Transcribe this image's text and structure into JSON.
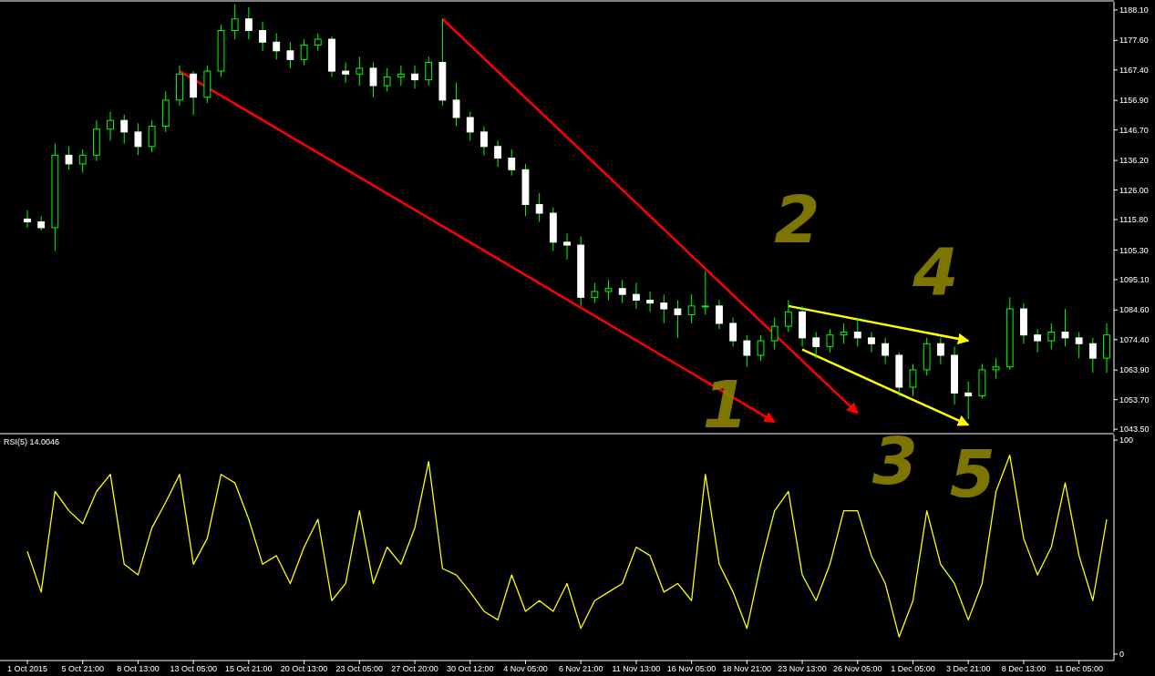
{
  "chart_data": [
    {
      "type": "candlestick",
      "tick_labels": "y",
      "categories": [
        null,
        null,
        null,
        null,
        null,
        null,
        null,
        null,
        null,
        null,
        null,
        null,
        null,
        null,
        null,
        null,
        null,
        null,
        null,
        null,
        null,
        null,
        null,
        null,
        null,
        null,
        null,
        null,
        null,
        null,
        null,
        null,
        null,
        null,
        null,
        null,
        null,
        null,
        null,
        null,
        null,
        null,
        null,
        null,
        null,
        null,
        null,
        null,
        null,
        null,
        null,
        null,
        null,
        null,
        null,
        null,
        null,
        null,
        null,
        null,
        null,
        null,
        null,
        null,
        null,
        null,
        null,
        null,
        null,
        null,
        null,
        null,
        null,
        null,
        null,
        null,
        null,
        null,
        null
      ],
      "ohlc": [
        [
          1116,
          1119,
          1113,
          1115
        ],
        [
          1115,
          1117,
          1112,
          1113
        ],
        [
          1113,
          1142,
          1105,
          1138
        ],
        [
          1138,
          1141,
          1133,
          1135
        ],
        [
          1135,
          1140,
          1132,
          1138
        ],
        [
          1138,
          1150,
          1136,
          1147
        ],
        [
          1147,
          1153,
          1143,
          1150
        ],
        [
          1150,
          1152,
          1142,
          1146
        ],
        [
          1146,
          1149,
          1138,
          1141
        ],
        [
          1141,
          1150,
          1139,
          1148
        ],
        [
          1148,
          1160,
          1146,
          1157
        ],
        [
          1157,
          1169,
          1155,
          1166
        ],
        [
          1166,
          1167,
          1152,
          1158
        ],
        [
          1158,
          1169,
          1156,
          1167
        ],
        [
          1167,
          1183,
          1165,
          1181
        ],
        [
          1181,
          1190,
          1178,
          1185
        ],
        [
          1185,
          1189,
          1178,
          1181
        ],
        [
          1181,
          1184,
          1174,
          1177
        ],
        [
          1177,
          1180,
          1171,
          1174
        ],
        [
          1174,
          1177,
          1168,
          1171
        ],
        [
          1171,
          1178,
          1169,
          1176
        ],
        [
          1176,
          1180,
          1174,
          1178
        ],
        [
          1178,
          1179,
          1165,
          1167
        ],
        [
          1167,
          1170,
          1163,
          1166
        ],
        [
          1166,
          1172,
          1162,
          1168
        ],
        [
          1168,
          1170,
          1158,
          1162
        ],
        [
          1162,
          1168,
          1160,
          1165
        ],
        [
          1165,
          1169,
          1162,
          1166
        ],
        [
          1166,
          1169,
          1161,
          1164
        ],
        [
          1164,
          1172,
          1162,
          1170
        ],
        [
          1170,
          1185,
          1155,
          1157
        ],
        [
          1157,
          1163,
          1148,
          1151
        ],
        [
          1151,
          1153,
          1143,
          1146
        ],
        [
          1146,
          1148,
          1138,
          1141
        ],
        [
          1141,
          1143,
          1134,
          1137
        ],
        [
          1137,
          1140,
          1131,
          1133
        ],
        [
          1133,
          1135,
          1117,
          1121
        ],
        [
          1121,
          1125,
          1115,
          1118
        ],
        [
          1118,
          1120,
          1105,
          1108
        ],
        [
          1108,
          1111,
          1102,
          1107
        ],
        [
          1107,
          1110,
          1086,
          1089
        ],
        [
          1089,
          1094,
          1087,
          1091
        ],
        [
          1091,
          1095,
          1088,
          1092
        ],
        [
          1092,
          1095,
          1087,
          1090
        ],
        [
          1090,
          1094,
          1085,
          1088
        ],
        [
          1088,
          1091,
          1084,
          1087
        ],
        [
          1087,
          1090,
          1080,
          1085
        ],
        [
          1085,
          1088,
          1075,
          1083
        ],
        [
          1083,
          1090,
          1080,
          1086
        ],
        [
          1086,
          1098,
          1083,
          1086
        ],
        [
          1086,
          1088,
          1078,
          1080
        ],
        [
          1080,
          1082,
          1072,
          1074
        ],
        [
          1074,
          1076,
          1065,
          1069
        ],
        [
          1069,
          1076,
          1067,
          1074
        ],
        [
          1074,
          1082,
          1071,
          1079
        ],
        [
          1079,
          1088,
          1077,
          1084
        ],
        [
          1084,
          1086,
          1072,
          1075
        ],
        [
          1075,
          1077,
          1068,
          1072
        ],
        [
          1072,
          1078,
          1070,
          1076
        ],
        [
          1076,
          1080,
          1073,
          1077
        ],
        [
          1077,
          1082,
          1072,
          1075
        ],
        [
          1075,
          1077,
          1070,
          1073
        ],
        [
          1073,
          1075,
          1066,
          1069
        ],
        [
          1069,
          1070,
          1055,
          1058
        ],
        [
          1058,
          1066,
          1055,
          1064
        ],
        [
          1064,
          1075,
          1062,
          1073
        ],
        [
          1073,
          1075,
          1066,
          1069
        ],
        [
          1069,
          1072,
          1052,
          1056
        ],
        [
          1056,
          1060,
          1047,
          1055
        ],
        [
          1055,
          1066,
          1054,
          1064
        ],
        [
          1064,
          1068,
          1061,
          1065
        ],
        [
          1065,
          1089,
          1064,
          1085
        ],
        [
          1085,
          1087,
          1073,
          1076
        ],
        [
          1076,
          1078,
          1070,
          1074
        ],
        [
          1074,
          1080,
          1071,
          1077
        ],
        [
          1077,
          1085,
          1072,
          1075
        ],
        [
          1075,
          1077,
          1068,
          1073
        ],
        [
          1073,
          1075,
          1063,
          1068
        ],
        [
          1068,
          1080,
          1063,
          1076
        ]
      ],
      "series": [
        {
          "type": "line",
          "color": "#ff0000",
          "values": [
            null,
            null,
            null,
            null,
            null,
            null,
            null,
            null,
            null,
            null,
            null,
            1167,
            null,
            null,
            null,
            null,
            null,
            null,
            null,
            null,
            null,
            null,
            null,
            null,
            null,
            null,
            null,
            null,
            null,
            null,
            null,
            null,
            null,
            null,
            null,
            null,
            null,
            null,
            null,
            null,
            null,
            null,
            null,
            null,
            null,
            null,
            null,
            null,
            null,
            null,
            null,
            null,
            null,
            null,
            1046,
            null,
            null,
            null,
            null,
            null,
            null,
            null,
            null,
            null,
            null,
            null,
            null,
            null,
            null,
            null,
            null,
            null,
            null,
            null,
            null,
            null,
            null,
            null,
            null
          ]
        },
        {
          "type": "line",
          "color": "#ff0000",
          "values": [
            null,
            null,
            null,
            null,
            null,
            null,
            null,
            null,
            null,
            null,
            null,
            null,
            null,
            null,
            null,
            null,
            null,
            null,
            null,
            null,
            null,
            null,
            null,
            null,
            null,
            null,
            null,
            null,
            null,
            null,
            1185,
            null,
            null,
            null,
            null,
            null,
            null,
            null,
            null,
            null,
            null,
            null,
            null,
            null,
            null,
            null,
            null,
            null,
            null,
            null,
            null,
            null,
            null,
            null,
            null,
            null,
            null,
            null,
            null,
            null,
            1049,
            null,
            null,
            null,
            null,
            null,
            null,
            null,
            null,
            null,
            null,
            null,
            null,
            null,
            null,
            null,
            null,
            null,
            null
          ]
        },
        {
          "type": "line",
          "color": "#ffff00",
          "values": [
            null,
            null,
            null,
            null,
            null,
            null,
            null,
            null,
            null,
            null,
            null,
            null,
            null,
            null,
            null,
            null,
            null,
            null,
            null,
            null,
            null,
            null,
            null,
            null,
            null,
            null,
            null,
            null,
            null,
            null,
            null,
            null,
            null,
            null,
            null,
            null,
            null,
            null,
            null,
            null,
            null,
            null,
            null,
            null,
            null,
            null,
            null,
            null,
            null,
            null,
            null,
            null,
            null,
            null,
            null,
            1086,
            null,
            null,
            null,
            null,
            null,
            null,
            null,
            null,
            null,
            null,
            null,
            null,
            1074,
            null,
            null,
            null,
            null,
            null,
            null,
            null,
            null,
            null,
            null
          ]
        },
        {
          "type": "line",
          "color": "#ffff00",
          "values": [
            null,
            null,
            null,
            null,
            null,
            null,
            null,
            null,
            null,
            null,
            null,
            null,
            null,
            null,
            null,
            null,
            null,
            null,
            null,
            null,
            null,
            null,
            null,
            null,
            null,
            null,
            null,
            null,
            null,
            null,
            null,
            null,
            null,
            null,
            null,
            null,
            null,
            null,
            null,
            null,
            null,
            null,
            null,
            null,
            null,
            null,
            null,
            null,
            null,
            null,
            null,
            null,
            null,
            null,
            null,
            null,
            1071,
            null,
            null,
            null,
            null,
            null,
            null,
            null,
            null,
            null,
            null,
            null,
            1045,
            null,
            null,
            null,
            null,
            null,
            null,
            null,
            null,
            null,
            null
          ]
        }
      ],
      "ylim": [
        1042.6,
        1190.9
      ],
      "yticks": [
        {
          "value": 1043.5,
          "label": "1043.50"
        },
        {
          "value": 1053.7,
          "label": "1053.70"
        },
        {
          "value": 1063.9,
          "label": "1063.90"
        },
        {
          "value": 1074.4,
          "label": "1074.40"
        },
        {
          "value": 1084.6,
          "label": "1084.60"
        },
        {
          "value": 1095.1,
          "label": "1095.10"
        },
        {
          "value": 1105.3,
          "label": "1105.30"
        },
        {
          "value": 1115.8,
          "label": "1115.80"
        },
        {
          "value": 1126,
          "label": "1126.00"
        },
        {
          "value": 1136.2,
          "label": "1136.20"
        },
        {
          "value": 1146.7,
          "label": "1146.70"
        },
        {
          "value": 1156.9,
          "label": "1156.90"
        },
        {
          "value": 1167.4,
          "label": "1167.40"
        },
        {
          "value": 1177.6,
          "label": "1177.60"
        },
        {
          "value": 1188.1,
          "label": "1188.10"
        }
      ],
      "annotations": [
        "1",
        "2",
        "3",
        "4",
        "5"
      ]
    },
    {
      "type": "line",
      "title": "RSI(5) 14.0046",
      "color": "#ffff00",
      "categories": [
        "1 Oct 2015",
        null,
        null,
        null,
        "5 Oct 21:00",
        null,
        null,
        null,
        "8 Oct 13:00",
        null,
        null,
        null,
        "13 Oct 05:00",
        null,
        null,
        null,
        "15 Oct 21:00",
        null,
        null,
        null,
        "20 Oct 13:00",
        null,
        null,
        null,
        "23 Oct 05:00",
        null,
        null,
        null,
        "27 Oct 20:00",
        null,
        null,
        null,
        "30 Oct 12:00",
        null,
        null,
        null,
        "4 Nov 05:00",
        null,
        null,
        null,
        "6 Nov 21:00",
        null,
        null,
        null,
        "11 Nov 13:00",
        null,
        null,
        null,
        "16 Nov 05:00",
        null,
        null,
        null,
        "18 Nov 21:00",
        null,
        null,
        null,
        "23 Nov 13:00",
        null,
        null,
        null,
        "26 Nov 05:00",
        null,
        null,
        null,
        "1 Dec 05:00",
        null,
        null,
        null,
        "3 Dec 21:00",
        null,
        null,
        null,
        "8 Dec 13:00",
        null,
        null,
        null,
        "11 Dec 05:00",
        null,
        null
      ],
      "values": [
        48,
        29,
        76,
        67,
        61,
        76,
        84,
        42,
        37,
        59,
        71,
        84,
        42,
        54,
        84,
        80,
        63,
        42,
        46,
        33,
        50,
        63,
        25,
        33,
        67,
        33,
        50,
        42,
        59,
        90,
        40,
        37,
        29,
        20,
        16,
        37,
        20,
        25,
        20,
        33,
        12,
        25,
        29,
        33,
        50,
        46,
        29,
        33,
        25,
        84,
        42,
        29,
        12,
        42,
        67,
        76,
        37,
        25,
        42,
        67,
        67,
        46,
        33,
        8,
        25,
        67,
        42,
        33,
        16,
        33,
        76,
        93,
        54,
        37,
        50,
        80,
        46,
        25,
        63
      ],
      "ylim": [
        -3,
        102.6
      ],
      "yticks": [
        0,
        100
      ]
    }
  ]
}
